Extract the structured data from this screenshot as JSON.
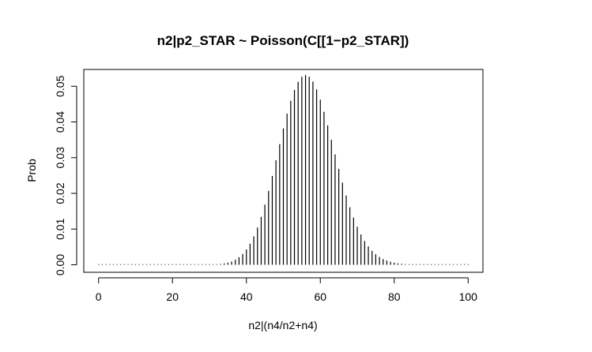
{
  "chart_data": {
    "type": "bar",
    "title": "n2|p2_STAR ~ Poisson(C[[1−p2_STAR])",
    "xlabel": "n2|(n4/n2+n4)",
    "ylabel": "Prob",
    "xlim": [
      -4,
      104
    ],
    "ylim": [
      -0.0021,
      0.0547
    ],
    "x_ticks": [
      0,
      20,
      40,
      60,
      80,
      100
    ],
    "x_tick_labels": [
      "0",
      "20",
      "40",
      "60",
      "80",
      "100"
    ],
    "y_ticks": [
      0.0,
      0.01,
      0.02,
      0.03,
      0.04,
      0.05
    ],
    "y_tick_labels": [
      "0.00",
      "0.01",
      "0.02",
      "0.03",
      "0.04",
      "0.05"
    ],
    "grid": false,
    "legend": "none",
    "distribution": {
      "family": "Poisson",
      "lambda": 56.5,
      "support_min": 0,
      "support_max": 100
    },
    "bar_color": "#000000"
  }
}
